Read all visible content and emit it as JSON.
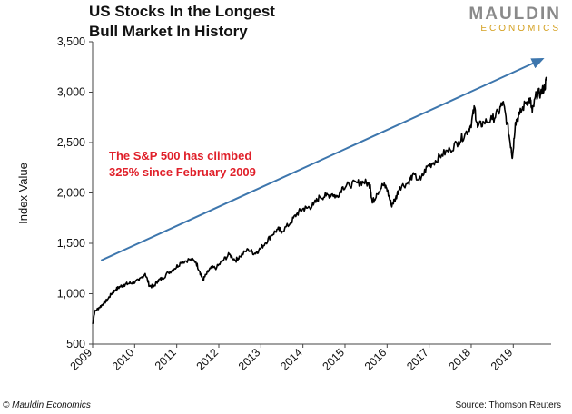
{
  "header": {
    "title_line1": "US Stocks In the Longest",
    "title_line2": "Bull Market In History",
    "logo_line1": "MAULDIN",
    "logo_line2": "ECONOMICS"
  },
  "footer": {
    "copyright": "© Mauldin Economics",
    "source": "Source: Thomson Reuters"
  },
  "colors": {
    "series": "#000000",
    "trend_arrow": "#3d76ad",
    "annotation": "#e0202a",
    "logo_gray": "#8a8a8a",
    "logo_gold": "#d4a020"
  },
  "chart_data": {
    "type": "line",
    "title": "US Stocks In the Longest Bull Market In History",
    "ylabel": "Index Value",
    "xlabel": "",
    "ylim": [
      500,
      3500
    ],
    "xlim": [
      2009.0,
      2019.9
    ],
    "yticks": [
      500,
      1000,
      1500,
      2000,
      2500,
      3000,
      3500
    ],
    "ytick_labels": [
      "500",
      "1,000",
      "1,500",
      "2,000",
      "2,500",
      "3,000",
      "3,500"
    ],
    "xticks": [
      2009,
      2010,
      2011,
      2012,
      2013,
      2014,
      2015,
      2016,
      2017,
      2018,
      2019
    ],
    "xtick_labels": [
      "2009",
      "2010",
      "2011",
      "2012",
      "2013",
      "2014",
      "2015",
      "2016",
      "2017",
      "2018",
      "2019"
    ],
    "grid": false,
    "annotation": {
      "line1": "The S&P 500 has climbed",
      "line2": "325% since February 2009"
    },
    "trend_arrow": {
      "from": [
        2009.2,
        1330
      ],
      "to": [
        2019.7,
        3330
      ]
    },
    "series": [
      {
        "x": [
          2009.0,
          2009.05,
          2009.15,
          2009.25,
          2009.35,
          2009.45,
          2009.55,
          2009.65,
          2009.75,
          2009.85,
          2009.95,
          2010.1,
          2010.25,
          2010.35,
          2010.45,
          2010.55,
          2010.65,
          2010.8,
          2010.95,
          2011.1,
          2011.3,
          2011.45,
          2011.55,
          2011.62,
          2011.7,
          2011.8,
          2011.95,
          2012.1,
          2012.25,
          2012.4,
          2012.5,
          2012.7,
          2012.85,
          2012.95,
          2013.1,
          2013.25,
          2013.4,
          2013.5,
          2013.7,
          2013.85,
          2013.99,
          2014.1,
          2014.25,
          2014.4,
          2014.55,
          2014.7,
          2014.8,
          2014.95,
          2015.1,
          2015.3,
          2015.45,
          2015.6,
          2015.65,
          2015.75,
          2015.9,
          2015.99,
          2016.1,
          2016.2,
          2016.3,
          2016.5,
          2016.6,
          2016.8,
          2016.95,
          2017.1,
          2017.3,
          2017.5,
          2017.7,
          2017.85,
          2017.99,
          2018.08,
          2018.15,
          2018.3,
          2018.5,
          2018.65,
          2018.75,
          2018.85,
          2018.95,
          2018.98,
          2019.05,
          2019.15,
          2019.3,
          2019.4,
          2019.45,
          2019.55,
          2019.65,
          2019.75,
          2019.8
        ],
        "values": [
          700,
          820,
          860,
          900,
          940,
          1000,
          1040,
          1070,
          1090,
          1100,
          1110,
          1130,
          1200,
          1080,
          1070,
          1130,
          1150,
          1210,
          1250,
          1310,
          1340,
          1320,
          1220,
          1130,
          1190,
          1250,
          1260,
          1330,
          1390,
          1330,
          1370,
          1440,
          1400,
          1430,
          1500,
          1580,
          1640,
          1620,
          1700,
          1790,
          1840,
          1850,
          1880,
          1960,
          1970,
          1990,
          1960,
          2060,
          2080,
          2100,
          2110,
          2080,
          1900,
          1990,
          2080,
          2050,
          1880,
          1940,
          2060,
          2100,
          2170,
          2130,
          2260,
          2300,
          2380,
          2430,
          2510,
          2580,
          2670,
          2850,
          2650,
          2700,
          2730,
          2800,
          2900,
          2700,
          2450,
          2350,
          2700,
          2780,
          2900,
          2930,
          2800,
          2980,
          2990,
          3050,
          3150
        ]
      }
    ]
  }
}
